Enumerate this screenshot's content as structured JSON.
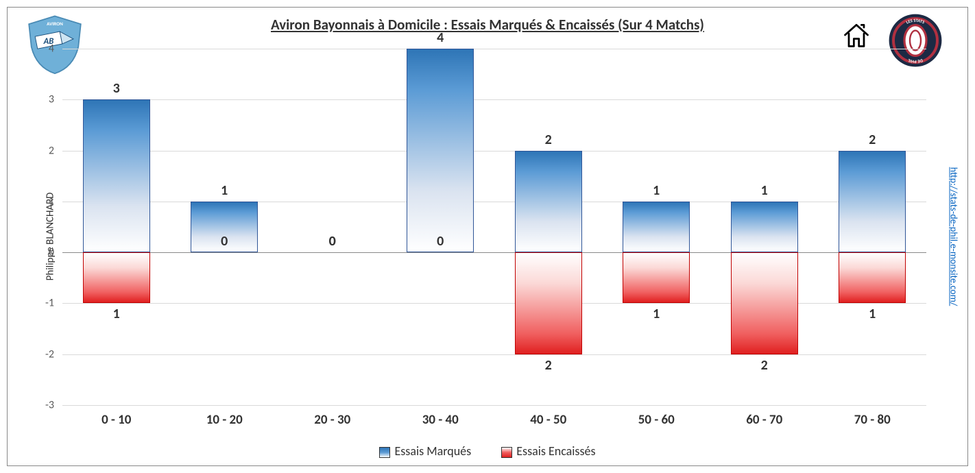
{
  "chart": {
    "type": "bar-diverging",
    "title": "Aviron Bayonnais à Domicile : Essais Marqués & Encaissés (Sur 4 Matchs)",
    "title_fontsize": 21,
    "author": "Philippe BLANCHARD",
    "url": "http://stats-de-phil.e-monsite.com/",
    "categories": [
      "0 - 10",
      "10 - 20",
      "20 - 30",
      "30 - 40",
      "40 - 50",
      "50 - 60",
      "60 - 70",
      "70 - 80"
    ],
    "series": {
      "marques": {
        "label": "Essais Marqués",
        "values": [
          3,
          1,
          0,
          4,
          2,
          1,
          1,
          2
        ],
        "gradient_top": "#2e75b6",
        "gradient_bottom": "#ffffff",
        "border": "#2f5597"
      },
      "encaisses": {
        "label": "Essais Encaissés",
        "values": [
          1,
          0,
          0,
          0,
          2,
          1,
          2,
          1
        ],
        "gradient_top": "#ffffff",
        "gradient_bottom": "#e02020",
        "border": "#c00000"
      }
    },
    "y_axis": {
      "min": -3,
      "max": 4,
      "ticks": [
        -3,
        -2,
        -1,
        0,
        1,
        2,
        3,
        4
      ],
      "grid_color": "#d9d9d9"
    },
    "label_fontsize": 20,
    "x_fontsize": 19,
    "background_color": "#ffffff",
    "bar_width_ratio": 0.62
  },
  "legendSwatch": {
    "marques": "linear-gradient(to top,#ffffff,#5b9bd5,#2e75b6)",
    "encaisses": "linear-gradient(to bottom,#ffffff,#f06060,#e02020)"
  },
  "logoLeft": {
    "primary": "#6fb0d8",
    "secondary": "#ffffff",
    "accent": "#1a4e7a"
  },
  "logoRight": {
    "outer": "#1c2a44",
    "ring": "#b03040",
    "inner": "#ffffff",
    "text": "LES STATS DE PHIL"
  }
}
